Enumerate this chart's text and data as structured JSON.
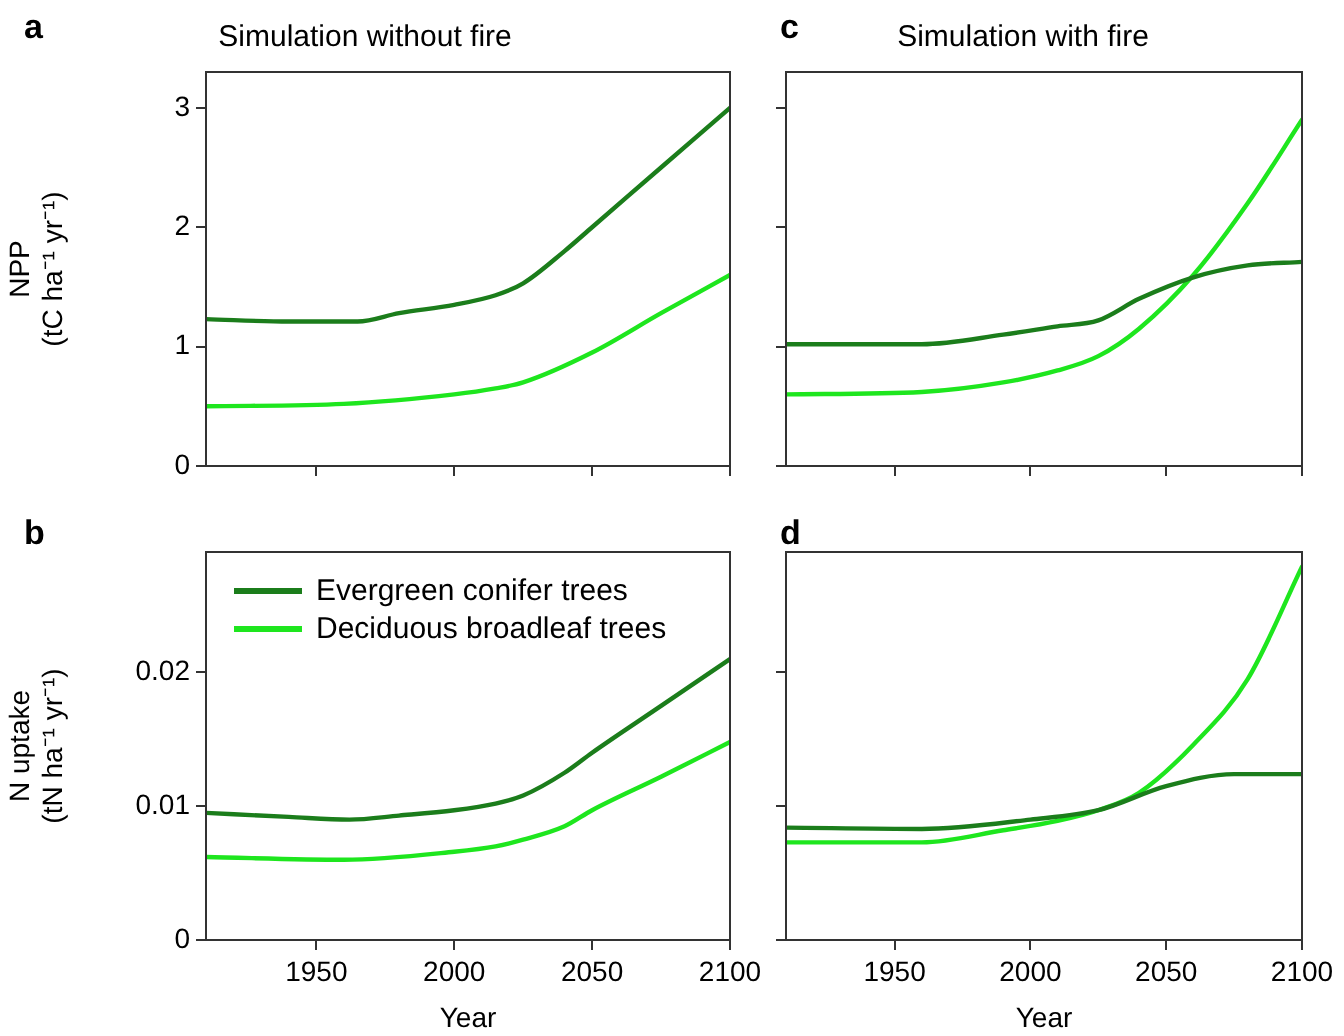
{
  "chart_data": [
    {
      "type": "line",
      "title": "Simulation without fire",
      "ylabel": "NPP\n(tC ha⁻¹ yr⁻¹)",
      "annotations": [
        "a"
      ],
      "xlim": [
        1910,
        2100
      ],
      "xticks": [
        1950,
        2000,
        2050,
        2100
      ],
      "ylim": [
        0,
        3.3
      ],
      "yticks": [
        0,
        1,
        2,
        3
      ],
      "tick_labels": "y",
      "grid": false,
      "legend": false,
      "marker": "none",
      "line_style": "solid",
      "series": [
        {
          "color": "#1b7d1b",
          "x": [
            1910,
            1940,
            1965,
            1980,
            2000,
            2015,
            2025,
            2040,
            2050,
            2075,
            2100
          ],
          "values": [
            1.23,
            1.21,
            1.21,
            1.28,
            1.35,
            1.43,
            1.53,
            1.8,
            2.0,
            2.5,
            3.0
          ]
        },
        {
          "color": "#1ee61e",
          "x": [
            1910,
            1960,
            2000,
            2015,
            2025,
            2050,
            2075,
            2100
          ],
          "values": [
            0.5,
            0.52,
            0.6,
            0.65,
            0.7,
            0.95,
            1.28,
            1.6
          ]
        }
      ]
    },
    {
      "type": "line",
      "title": "Simulation with fire",
      "annotations": [
        "c"
      ],
      "xlim": [
        1910,
        2100
      ],
      "xticks": [
        1950,
        2000,
        2050,
        2100
      ],
      "ylim": [
        0,
        3.3
      ],
      "yticks": [
        0,
        1,
        2,
        3
      ],
      "tick_labels": false,
      "grid": false,
      "legend": false,
      "marker": "none",
      "line_style": "solid",
      "series": [
        {
          "color": "#1b7d1b",
          "x": [
            1910,
            1960,
            1990,
            2010,
            2025,
            2040,
            2060,
            2080,
            2100
          ],
          "values": [
            1.02,
            1.02,
            1.1,
            1.17,
            1.22,
            1.4,
            1.58,
            1.68,
            1.71
          ]
        },
        {
          "color": "#1ee61e",
          "x": [
            1910,
            1960,
            1990,
            2010,
            2025,
            2040,
            2060,
            2080,
            2100
          ],
          "values": [
            0.6,
            0.62,
            0.7,
            0.8,
            0.92,
            1.15,
            1.6,
            2.2,
            2.9
          ]
        }
      ]
    },
    {
      "type": "line",
      "xlabel": "Year",
      "ylabel": "N uptake\n(tN ha⁻¹ yr⁻¹)",
      "annotations": [
        "b"
      ],
      "xlim": [
        1910,
        2100
      ],
      "xticks": [
        1950,
        2000,
        2050,
        2100
      ],
      "ylim": [
        0,
        0.029
      ],
      "yticks": [
        0,
        0.01,
        0.02
      ],
      "grid": false,
      "legend": "top left",
      "marker": "none",
      "line_style": "solid",
      "series": [
        {
          "name": "Evergreen conifer trees",
          "color": "#1b7d1b",
          "x": [
            1910,
            1940,
            1962,
            1980,
            2000,
            2015,
            2025,
            2040,
            2050,
            2075,
            2100
          ],
          "values": [
            0.0095,
            0.0092,
            0.009,
            0.0093,
            0.0097,
            0.0102,
            0.0108,
            0.0125,
            0.014,
            0.0175,
            0.021
          ]
        },
        {
          "name": "Deciduous broadleaf trees",
          "color": "#1ee61e",
          "x": [
            1910,
            1960,
            2000,
            2015,
            2025,
            2040,
            2050,
            2075,
            2100
          ],
          "values": [
            0.0062,
            0.006,
            0.0066,
            0.007,
            0.0075,
            0.0085,
            0.0097,
            0.0122,
            0.0148
          ]
        }
      ]
    },
    {
      "type": "line",
      "xlabel": "Year",
      "annotations": [
        "d"
      ],
      "xlim": [
        1910,
        2100
      ],
      "xticks": [
        1950,
        2000,
        2050,
        2100
      ],
      "ylim": [
        0,
        0.029
      ],
      "yticks": [
        0,
        0.01,
        0.02
      ],
      "tick_labels": "x",
      "grid": false,
      "legend": false,
      "marker": "none",
      "line_style": "solid",
      "series": [
        {
          "color": "#1b7d1b",
          "x": [
            1910,
            1960,
            2000,
            2025,
            2050,
            2075,
            2100
          ],
          "values": [
            0.0084,
            0.0083,
            0.009,
            0.0097,
            0.0115,
            0.0124,
            0.0124
          ]
        },
        {
          "color": "#1ee61e",
          "x": [
            1910,
            1960,
            1990,
            2010,
            2025,
            2040,
            2060,
            2080,
            2100
          ],
          "values": [
            0.0073,
            0.0073,
            0.0082,
            0.0089,
            0.0097,
            0.011,
            0.0146,
            0.0195,
            0.0279
          ]
        }
      ]
    }
  ]
}
